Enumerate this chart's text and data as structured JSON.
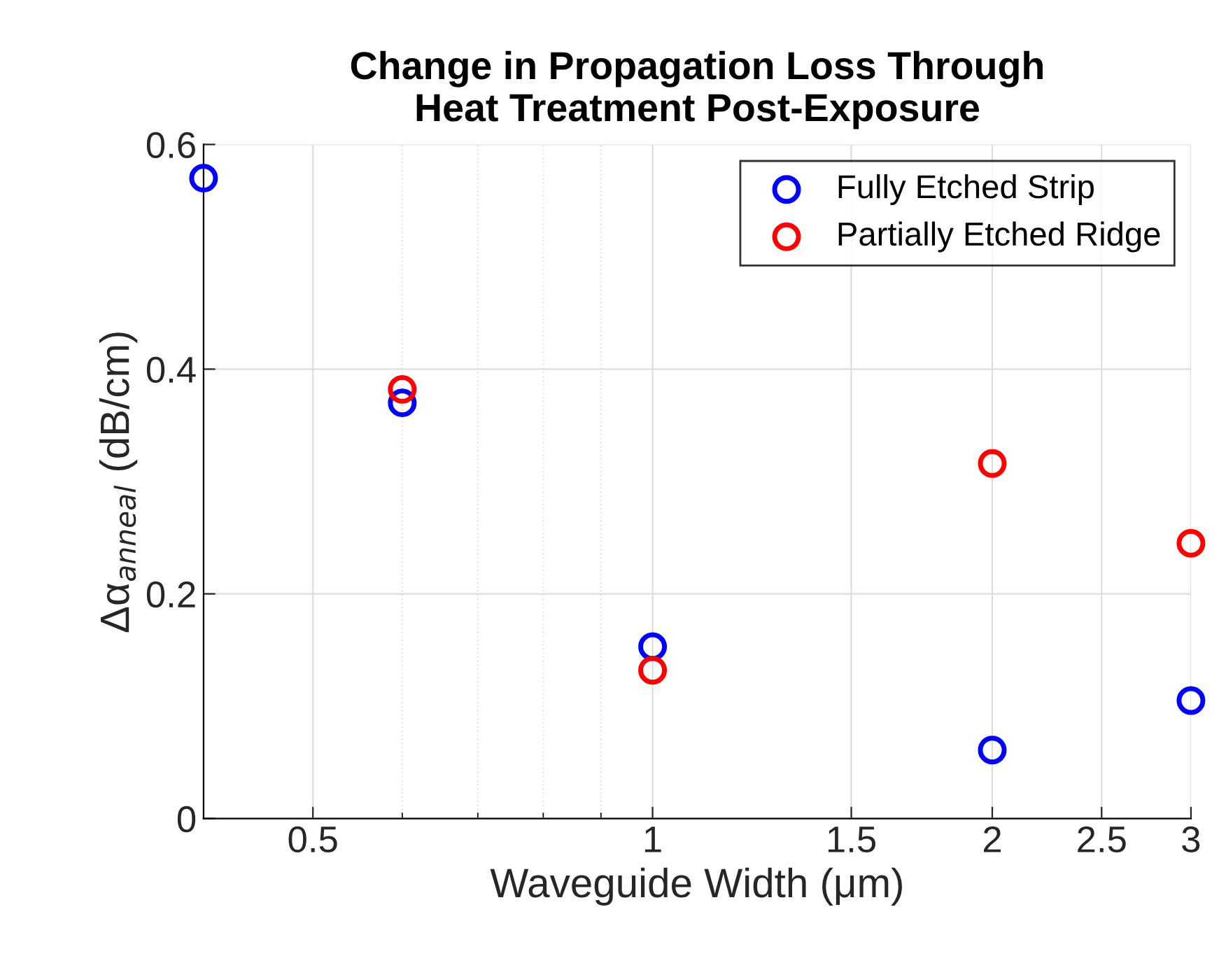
{
  "chart_data": {
    "type": "scatter",
    "title": "Change in Propagation Loss Through\nHeat Treatment Post-Exposure",
    "xlabel": "Waveguide Width (μm)",
    "ylabel": "Δα$_{anneal}$ (dB/cm)",
    "x": [
      0.4,
      0.6,
      1,
      2,
      3
    ],
    "series": [
      {
        "name": "Fully Etched Strip",
        "color": "#0000ff",
        "values": [
          0.57,
          0.37,
          0.153,
          0.061,
          0.105
        ]
      },
      {
        "name": "Partially Etched Ridge",
        "color": "#ff0000",
        "values": [
          null,
          0.382,
          0.132,
          0.316,
          0.245
        ]
      }
    ],
    "log": "x",
    "xlim": [
      0.4,
      3
    ],
    "xticks": [
      0.5,
      1,
      1.5,
      2,
      2.5,
      3
    ],
    "ylim": [
      0,
      0.6
    ],
    "yticks": [
      0,
      0.2,
      0.4,
      0.6
    ],
    "grid": true,
    "legend": "top right",
    "marker": "circle"
  }
}
